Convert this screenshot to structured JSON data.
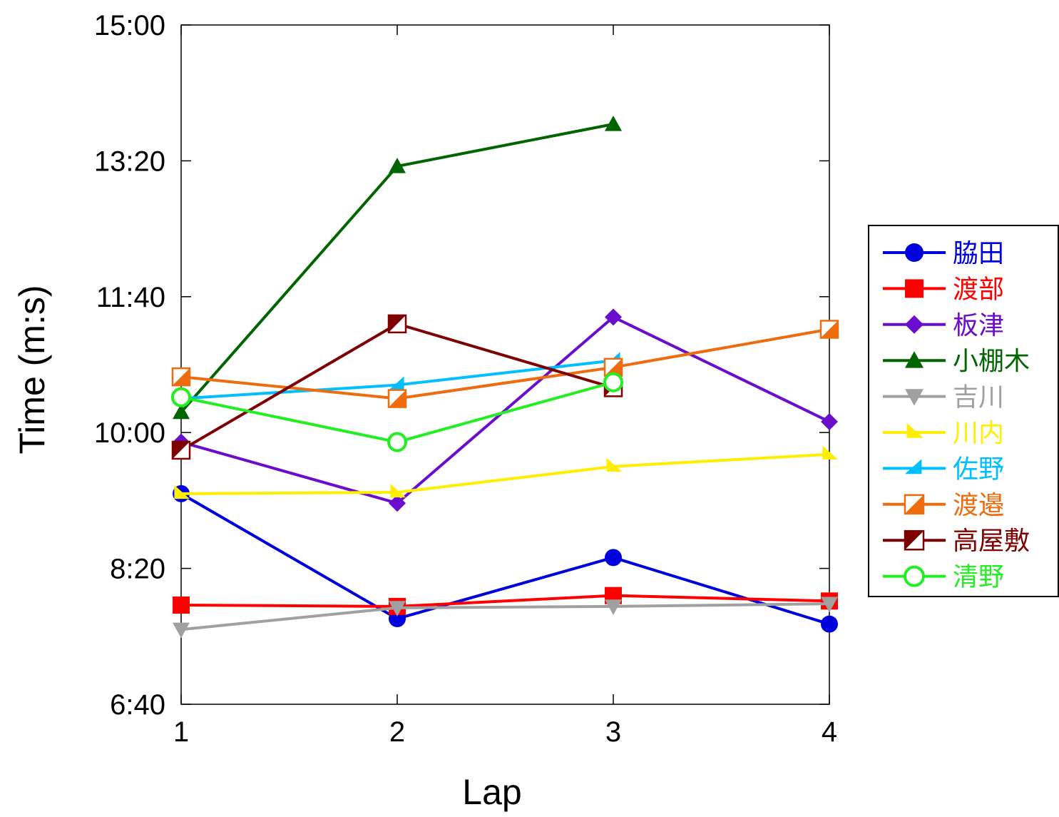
{
  "chart_data": {
    "type": "line",
    "xlabel": "Lap",
    "ylabel": "Time (m:s)",
    "x": [
      1,
      2,
      3,
      4
    ],
    "x_ticks": [
      "1",
      "2",
      "3",
      "4"
    ],
    "xlim": [
      1,
      4
    ],
    "ylim": [
      400,
      900
    ],
    "y_ticks": [
      400,
      500,
      600,
      700,
      800,
      900
    ],
    "y_tick_labels": [
      "6:40",
      "8:20",
      "10:00",
      "11:40",
      "13:20",
      "15:00"
    ],
    "grid": false,
    "legend_position": "right",
    "series": [
      {
        "name": "脇田",
        "color": "#0000dd",
        "marker": "circle",
        "values": [
          555,
          463,
          508,
          459
        ]
      },
      {
        "name": "渡部",
        "color": "#ff0000",
        "marker": "square",
        "values": [
          473,
          472,
          480,
          476
        ]
      },
      {
        "name": "板津",
        "color": "#6a0dcc",
        "marker": "diamond",
        "values": [
          593,
          548,
          685,
          608
        ]
      },
      {
        "name": "小棚木",
        "color": "#006400",
        "marker": "triangle-up",
        "values": [
          615,
          796,
          827,
          null
        ]
      },
      {
        "name": "吉川",
        "color": "#a0a0a0",
        "marker": "triangle-down",
        "values": [
          455,
          471,
          472,
          474
        ]
      },
      {
        "name": "川内",
        "color": "#ffee00",
        "marker": "triangle-right",
        "values": [
          555,
          556,
          575,
          584
        ]
      },
      {
        "name": "佐野",
        "color": "#00bfff",
        "marker": "triangle-left",
        "values": [
          625,
          635,
          653,
          null
        ]
      },
      {
        "name": "渡邉",
        "color": "#ee6c0e",
        "marker": "half-square",
        "values": [
          641,
          625,
          648,
          676
        ]
      },
      {
        "name": "高屋敷",
        "color": "#7f0000",
        "marker": "half-square-dark",
        "values": [
          587,
          680,
          633,
          null
        ]
      },
      {
        "name": "清野",
        "color": "#22ee22",
        "marker": "open-circle",
        "values": [
          626,
          593,
          637,
          null
        ]
      }
    ]
  }
}
